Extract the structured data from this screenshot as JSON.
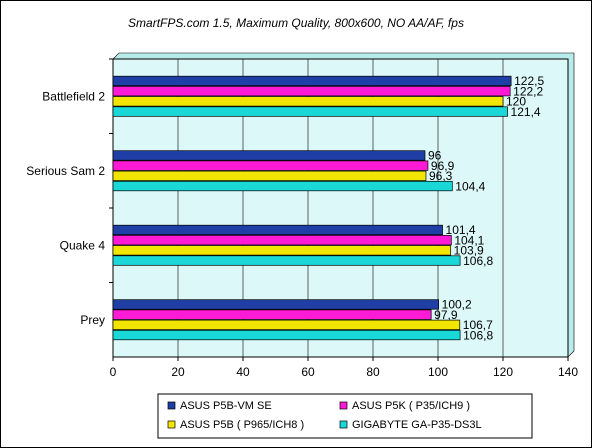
{
  "chart_data": {
    "type": "bar",
    "orientation": "horizontal",
    "title": "SmartFPS.com 1.5, Maximum Quality, 800x600, NO AA/AF, fps",
    "categories": [
      "Battlefield 2",
      "Serious Sam 2",
      "Quake 4",
      "Prey"
    ],
    "series": [
      {
        "name": "ASUS P5B-VM SE",
        "color": "#1f3fa6",
        "values": [
          122.5,
          96,
          101.4,
          100.2
        ],
        "labels": [
          "122,5",
          "96",
          "101,4",
          "100,2"
        ]
      },
      {
        "name": "ASUS P5K ( P35/ICH9 )",
        "color": "#ff1ad6",
        "values": [
          122.2,
          96.9,
          104.1,
          97.9
        ],
        "labels": [
          "122,2",
          "96,9",
          "104,1",
          "97,9"
        ]
      },
      {
        "name": "ASUS P5B ( P965/ICH8 )",
        "color": "#f2e600",
        "values": [
          120,
          96.3,
          103.9,
          106.7
        ],
        "labels": [
          "120",
          "96,3",
          "103,9",
          "106,7"
        ]
      },
      {
        "name": "GIGABYTE GA-P35-DS3L",
        "color": "#1ad8d8",
        "values": [
          121.4,
          104.4,
          106.8,
          106.8
        ],
        "labels": [
          "121,4",
          "104,4",
          "106,8",
          "106,8"
        ]
      }
    ],
    "xlim": [
      0,
      140
    ],
    "xticks": [
      0,
      20,
      40,
      60,
      80,
      100,
      120,
      140
    ],
    "xlabel": "",
    "ylabel": "",
    "grid": "vertical",
    "plot_background": "#ddf8f8",
    "legend_position": "bottom"
  }
}
